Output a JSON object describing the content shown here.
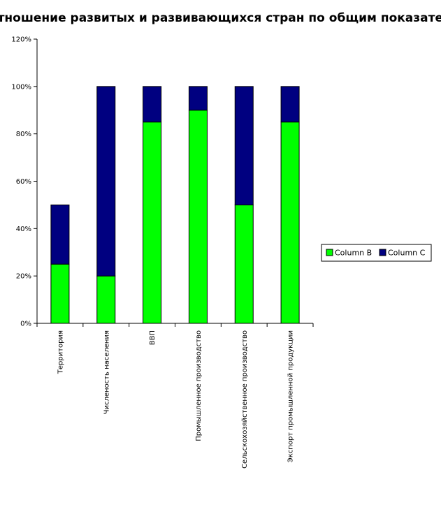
{
  "chart_data": {
    "type": "bar",
    "stacked": true,
    "title": "Соотношение развитых и развивающихся стран по общим показателям",
    "categories": [
      "Территория",
      "Численость населения",
      "ВВП",
      "Промышленное производство",
      "Сельскохозяйственное производство",
      "Экспорт промышленной продукции"
    ],
    "series": [
      {
        "name": "Column B",
        "color": "#00ff00",
        "values": [
          25,
          20,
          85,
          90,
          50,
          85
        ]
      },
      {
        "name": "Column C",
        "color": "#000080",
        "values": [
          25,
          80,
          15,
          10,
          50,
          15
        ]
      }
    ],
    "yticks": [
      "0%",
      "20%",
      "40%",
      "60%",
      "80%",
      "100%",
      "120%"
    ],
    "ylim": [
      0,
      120
    ],
    "grid": false,
    "legend_position": "right"
  }
}
